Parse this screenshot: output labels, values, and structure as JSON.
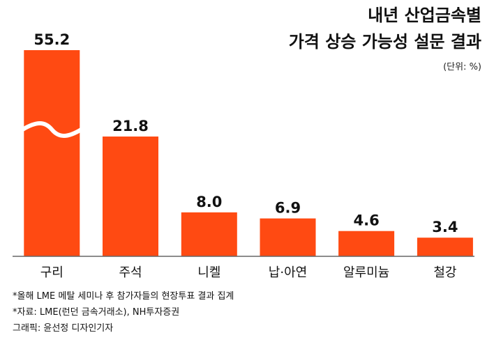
{
  "chart_data": {
    "type": "bar",
    "title_lines": [
      "내년 산업금속별",
      "가격 상승 가능성 설문 결과"
    ],
    "unit_label": "(단위: %)",
    "categories": [
      "구리",
      "주석",
      "니켈",
      "납·아연",
      "알루미늄",
      "철강"
    ],
    "values": [
      55.2,
      21.8,
      8.0,
      6.9,
      4.6,
      3.4
    ],
    "value_labels": [
      "55.2",
      "21.8",
      "8.0",
      "6.9",
      "4.6",
      "3.4"
    ],
    "axis_break_on_first_bar": true,
    "bar_color": "#FF4A12",
    "axis_color": "#666666"
  },
  "footnotes": [
    "*올해 LME 메탈 세미나 후 참가자들의 현장투표 결과 집계",
    "*자료: LME(런던 금속거래소), NH투자증권",
    "그래픽: 윤선정 디자인기자"
  ]
}
